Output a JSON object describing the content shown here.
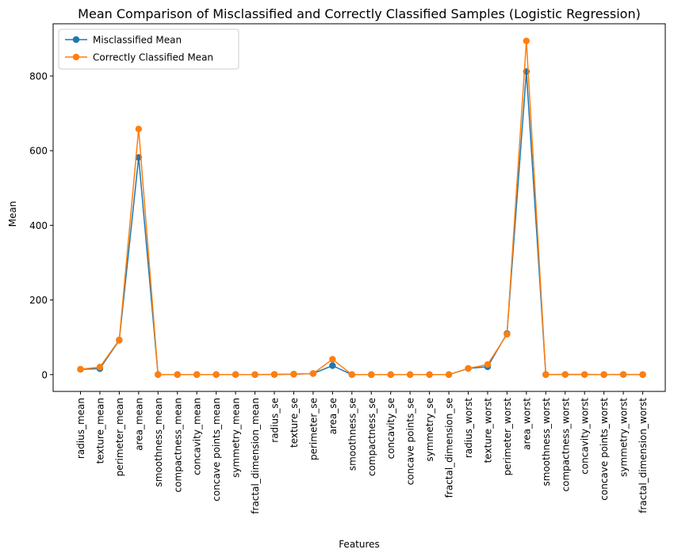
{
  "chart_data": {
    "type": "line",
    "title": "Mean Comparison of Misclassified and Correctly Classified Samples (Logistic Regression)",
    "xlabel": "Features",
    "ylabel": "Mean",
    "ylim": [
      -45,
      940
    ],
    "yticks": [
      0,
      200,
      400,
      600,
      800
    ],
    "grid": false,
    "legend_position": "upper-left",
    "categories": [
      "radius_mean",
      "texture_mean",
      "perimeter_mean",
      "area_mean",
      "smoothness_mean",
      "compactness_mean",
      "concavity_mean",
      "concave points_mean",
      "symmetry_mean",
      "fractal_dimension_mean",
      "radius_se",
      "texture_se",
      "perimeter_se",
      "area_se",
      "smoothness_se",
      "compactness_se",
      "concavity_se",
      "concave points_se",
      "symmetry_se",
      "fractal_dimension_se",
      "radius_worst",
      "texture_worst",
      "perimeter_worst",
      "area_worst",
      "smoothness_worst",
      "compactness_worst",
      "concavity_worst",
      "concave points_worst",
      "symmetry_worst",
      "fractal_dimension_worst"
    ],
    "series": [
      {
        "name": "Misclassified Mean",
        "color": "#1f77b4",
        "values": [
          14,
          16,
          92,
          582,
          0.1,
          0.1,
          0.1,
          0.05,
          0.18,
          0.06,
          0.4,
          1.2,
          2.8,
          24,
          0.007,
          0.025,
          0.03,
          0.01,
          0.02,
          0.004,
          16.5,
          21,
          110,
          812,
          0.13,
          0.25,
          0.27,
          0.11,
          0.29,
          0.08
        ]
      },
      {
        "name": "Correctly Classified Mean",
        "color": "#ff7f0e",
        "values": [
          14.5,
          20,
          93,
          658,
          0.1,
          0.1,
          0.09,
          0.05,
          0.18,
          0.06,
          0.4,
          1.2,
          2.9,
          41,
          0.007,
          0.025,
          0.03,
          0.01,
          0.02,
          0.004,
          16.5,
          27,
          108,
          894,
          0.13,
          0.25,
          0.27,
          0.11,
          0.29,
          0.08
        ]
      }
    ]
  }
}
